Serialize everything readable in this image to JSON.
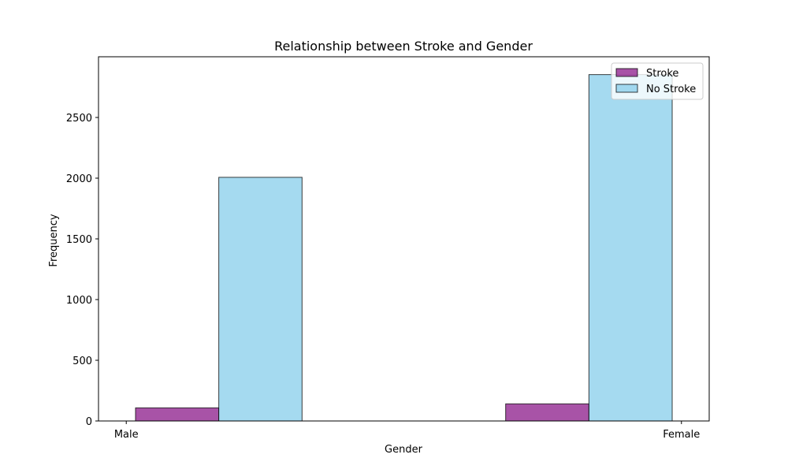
{
  "chart_data": {
    "type": "bar",
    "title": "Relationship between Stroke and Gender",
    "xlabel": "Gender",
    "ylabel": "Frequency",
    "x_ticks": [
      {
        "label": "Male",
        "value": 0
      },
      {
        "label": "Female",
        "value": 1
      }
    ],
    "y_ticks": [
      0,
      500,
      1000,
      1500,
      2000,
      2500
    ],
    "xlim": [
      -0.05,
      1.05
    ],
    "ylim": [
      0,
      3000
    ],
    "bin_edges": [
      0,
      0.3333,
      0.6667,
      1
    ],
    "series": [
      {
        "name": "Stroke",
        "color": "#8b1a89",
        "values": [
          108,
          0,
          141
        ]
      },
      {
        "name": "No Stroke",
        "color": "#87ceeb",
        "values": [
          2007,
          0,
          2853
        ]
      }
    ],
    "legend_position": "top-right",
    "grid": false
  }
}
